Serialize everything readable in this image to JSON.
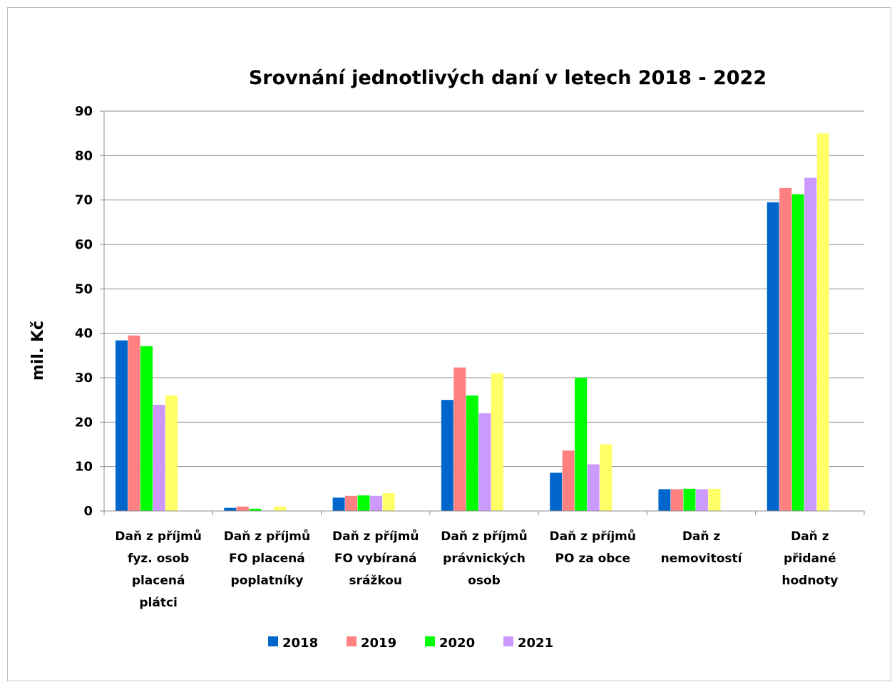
{
  "chart_data": {
    "type": "bar",
    "title": "Srovnání  jednotlivých daní v letech 2018 - 2022",
    "ylabel": "mil. Kč",
    "xlabel": "",
    "ylim": [
      0,
      90
    ],
    "yticks": [
      0,
      10,
      20,
      30,
      40,
      50,
      60,
      70,
      80,
      90
    ],
    "grid": true,
    "legend_position": "bottom",
    "categories": [
      [
        "Daň z příjmů",
        "fyz. osob",
        "placená",
        "plátci"
      ],
      [
        "Daň z příjmů",
        "FO placená",
        "poplatníky"
      ],
      [
        "Daň z příjmů",
        "FO vybíraná",
        "srážkou"
      ],
      [
        "Daň z příjmů",
        "právnických",
        "osob"
      ],
      [
        "Daň z příjmů",
        "PO za obce"
      ],
      [
        "Daň z",
        "nemovitostí"
      ],
      [
        "Daň z",
        "přidané",
        "hodnoty"
      ]
    ],
    "series": [
      {
        "name": "2018",
        "color": "#0066cc",
        "values": [
          38.4,
          0.7,
          3.0,
          25.0,
          8.6,
          4.9,
          69.5
        ]
      },
      {
        "name": "2019",
        "color": "#ff8080",
        "values": [
          39.5,
          1.0,
          3.4,
          32.3,
          13.6,
          4.9,
          72.7
        ]
      },
      {
        "name": "2020",
        "color": "#00ff00",
        "values": [
          37.1,
          0.5,
          3.5,
          26.0,
          30.0,
          5.0,
          71.3
        ]
      },
      {
        "name": "2021",
        "color": "#cc99ff",
        "values": [
          23.9,
          0.1,
          3.4,
          22.0,
          10.5,
          4.9,
          75.0
        ]
      },
      {
        "name": "",
        "color": "#ffff66",
        "values": [
          26.0,
          1.0,
          4.0,
          31.0,
          15.0,
          5.0,
          85.0
        ]
      }
    ]
  }
}
